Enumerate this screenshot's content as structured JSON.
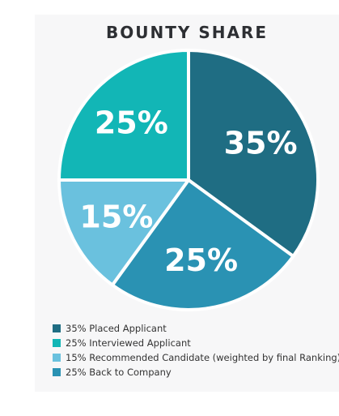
{
  "chart_data": {
    "type": "pie",
    "title": "BOUNTY SHARE",
    "slices": [
      {
        "label": "35% Placed Applicant",
        "value": 35,
        "display": "35%",
        "color": "#1f6d83"
      },
      {
        "label": "25% Back to Company",
        "value": 25,
        "display": "25%",
        "color": "#2a92b3"
      },
      {
        "label": "15% Recommended Candidate (weighted by final Ranking)",
        "value": 15,
        "display": "15%",
        "color": "#6ac1de"
      },
      {
        "label": "25% Interviewed Applicant",
        "value": 25,
        "display": "25%",
        "color": "#12b6b6"
      }
    ],
    "legend_order": [
      0,
      3,
      2,
      1
    ],
    "legend_position": "bottom-left"
  }
}
